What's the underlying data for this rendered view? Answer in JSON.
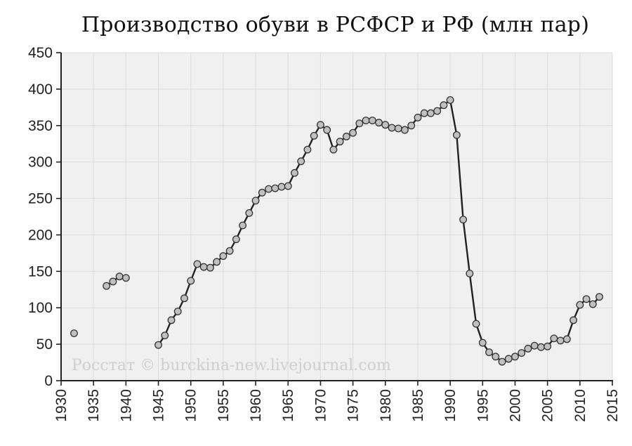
{
  "chart_data": {
    "type": "line",
    "title": "Производство обуви в РСФСР и РФ (млн пар)",
    "xlabel": "",
    "ylabel": "",
    "xlim": [
      1930,
      2015
    ],
    "ylim": [
      0,
      450
    ],
    "x_ticks": [
      1930,
      1935,
      1940,
      1945,
      1950,
      1955,
      1960,
      1965,
      1970,
      1975,
      1980,
      1985,
      1990,
      1995,
      2000,
      2005,
      2010,
      2015
    ],
    "y_ticks": [
      0,
      50,
      100,
      150,
      200,
      250,
      300,
      350,
      400,
      450
    ],
    "grid": true,
    "legend": "none",
    "colors": {
      "plot_background": "#f0f0f0",
      "grid": "#dcdcdc",
      "line": "#222222",
      "marker_fill": "#c0c0c0",
      "marker_stroke": "#333333",
      "axis": "#222222"
    },
    "watermark": "Росстат © burckina-new.livejournal.com",
    "segments": [
      [
        [
          1932,
          65
        ]
      ],
      [
        [
          1937,
          130
        ],
        [
          1938,
          136
        ],
        [
          1939,
          143
        ],
        [
          1940,
          141
        ]
      ],
      [
        [
          1945,
          49
        ],
        [
          1946,
          62
        ],
        [
          1947,
          83
        ],
        [
          1948,
          95
        ],
        [
          1949,
          113
        ],
        [
          1950,
          137
        ],
        [
          1951,
          160
        ],
        [
          1952,
          156
        ],
        [
          1953,
          155
        ],
        [
          1954,
          163
        ],
        [
          1955,
          171
        ],
        [
          1956,
          178
        ],
        [
          1957,
          194
        ],
        [
          1958,
          213
        ],
        [
          1959,
          230
        ],
        [
          1960,
          247
        ],
        [
          1961,
          258
        ],
        [
          1962,
          263
        ],
        [
          1963,
          264
        ],
        [
          1964,
          266
        ],
        [
          1965,
          267
        ],
        [
          1966,
          285
        ],
        [
          1967,
          301
        ],
        [
          1968,
          317
        ],
        [
          1969,
          336
        ],
        [
          1970,
          351
        ],
        [
          1971,
          344
        ],
        [
          1972,
          317
        ],
        [
          1973,
          328
        ],
        [
          1974,
          335
        ],
        [
          1975,
          340
        ],
        [
          1976,
          353
        ],
        [
          1977,
          357
        ],
        [
          1978,
          357
        ],
        [
          1979,
          354
        ],
        [
          1980,
          351
        ],
        [
          1981,
          347
        ],
        [
          1982,
          346
        ],
        [
          1983,
          344
        ],
        [
          1984,
          350
        ],
        [
          1985,
          361
        ],
        [
          1986,
          367
        ],
        [
          1987,
          367
        ],
        [
          1988,
          370
        ],
        [
          1989,
          378
        ],
        [
          1990,
          385
        ],
        [
          1991,
          337
        ],
        [
          1992,
          221
        ],
        [
          1993,
          147
        ],
        [
          1994,
          78
        ],
        [
          1995,
          52
        ],
        [
          1996,
          39
        ],
        [
          1997,
          33
        ],
        [
          1998,
          26
        ],
        [
          1999,
          30
        ],
        [
          2000,
          33
        ],
        [
          2001,
          38
        ],
        [
          2002,
          44
        ],
        [
          2003,
          48
        ],
        [
          2004,
          46
        ],
        [
          2005,
          47
        ],
        [
          2006,
          58
        ],
        [
          2007,
          55
        ],
        [
          2008,
          57
        ],
        [
          2009,
          83
        ],
        [
          2010,
          104
        ],
        [
          2011,
          112
        ],
        [
          2012,
          105
        ],
        [
          2013,
          115
        ]
      ]
    ]
  }
}
